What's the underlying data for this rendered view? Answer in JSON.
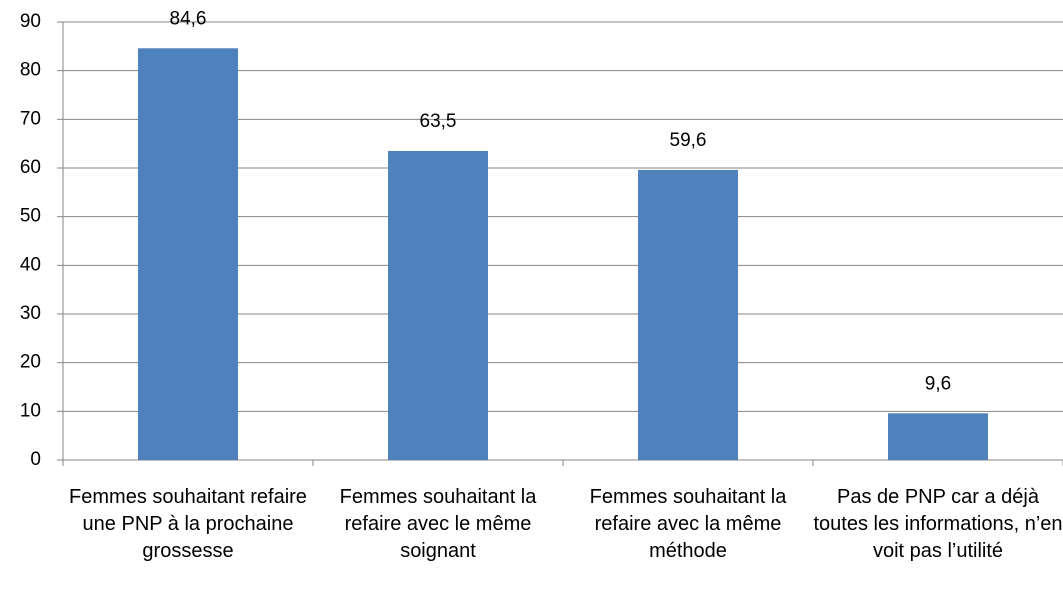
{
  "chart_data": {
    "type": "bar",
    "categories": [
      "Femmes souhaitant refaire une PNP à la prochaine grossesse",
      "Femmes souhaitant la refaire avec le même soignant",
      "Femmes souhaitant la refaire avec la même méthode",
      "Pas de PNP car a déjà toutes les informations, n’en voit pas l’utilité"
    ],
    "values": [
      84.6,
      63.5,
      59.6,
      9.6
    ],
    "value_labels": [
      "84,6",
      "63,5",
      "59,6",
      "9,6"
    ],
    "color": "#4f81bd",
    "ylim": [
      0,
      90
    ],
    "yticks": [
      0,
      10,
      20,
      30,
      40,
      50,
      60,
      70,
      80,
      90
    ],
    "grid": true
  }
}
